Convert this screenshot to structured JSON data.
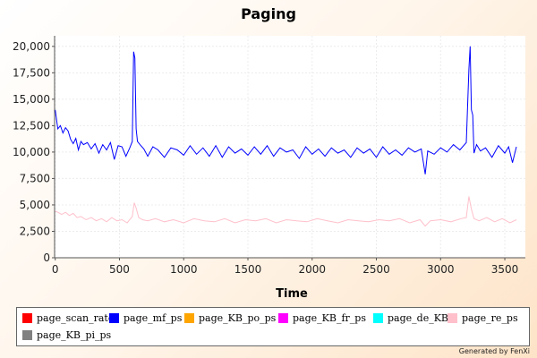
{
  "chart_data": {
    "type": "line",
    "title": "Paging",
    "xlabel": "Time",
    "ylabel": "",
    "xlim": [
      -5,
      3660
    ],
    "ylim": [
      0,
      21000
    ],
    "x_ticks": [
      0,
      500,
      1000,
      1500,
      2000,
      2500,
      3000,
      3500
    ],
    "y_ticks": [
      0,
      2500,
      5000,
      7500,
      10000,
      12500,
      15000,
      17500,
      20000
    ],
    "x_tick_labels": [
      "0",
      "500",
      "1000",
      "1500",
      "2000",
      "2500",
      "3000",
      "3500"
    ],
    "y_tick_labels": [
      "0",
      "2,500",
      "5,000",
      "7,500",
      "10,000",
      "12,500",
      "15,000",
      "17,500",
      "20,000"
    ],
    "grid": true,
    "legend_position": "bottom",
    "series": [
      {
        "name": "page_scan_rate",
        "color": "#ff0000",
        "x": [
          0,
          3600
        ],
        "y": [
          0,
          0
        ]
      },
      {
        "name": "page_mf_ps",
        "color": "#0000ff",
        "x": [
          0,
          20,
          40,
          60,
          80,
          100,
          120,
          140,
          160,
          180,
          200,
          220,
          250,
          280,
          310,
          340,
          370,
          400,
          430,
          460,
          490,
          520,
          550,
          580,
          600,
          610,
          620,
          630,
          640,
          660,
          690,
          720,
          760,
          800,
          850,
          900,
          950,
          1000,
          1050,
          1100,
          1150,
          1200,
          1250,
          1300,
          1350,
          1400,
          1450,
          1500,
          1550,
          1600,
          1650,
          1700,
          1750,
          1800,
          1850,
          1900,
          1950,
          2000,
          2050,
          2100,
          2150,
          2200,
          2250,
          2300,
          2350,
          2400,
          2450,
          2500,
          2550,
          2600,
          2650,
          2700,
          2750,
          2800,
          2850,
          2880,
          2900,
          2950,
          3000,
          3050,
          3100,
          3150,
          3200,
          3220,
          3230,
          3240,
          3250,
          3260,
          3280,
          3310,
          3350,
          3400,
          3450,
          3500,
          3530,
          3560,
          3590
        ],
        "y": [
          14000,
          12200,
          12500,
          11800,
          12300,
          12000,
          11200,
          10800,
          11300,
          10200,
          11000,
          10700,
          10900,
          10300,
          10800,
          9900,
          10700,
          10200,
          10900,
          9300,
          10600,
          10500,
          9600,
          10400,
          11000,
          19500,
          18900,
          12200,
          11000,
          10700,
          10300,
          9600,
          10500,
          10200,
          9500,
          10400,
          10200,
          9700,
          10600,
          9800,
          10400,
          9600,
          10600,
          9500,
          10500,
          9900,
          10300,
          9700,
          10500,
          9800,
          10600,
          9600,
          10400,
          10000,
          10200,
          9400,
          10500,
          9800,
          10300,
          9600,
          10400,
          9900,
          10200,
          9500,
          10400,
          9900,
          10300,
          9500,
          10500,
          9800,
          10200,
          9700,
          10400,
          10000,
          10300,
          7900,
          10100,
          9800,
          10400,
          10000,
          10700,
          10200,
          10900,
          17800,
          20000,
          14000,
          13500,
          9900,
          10700,
          10100,
          10400,
          9500,
          10600,
          9900,
          10500,
          9000,
          10500
        ]
      },
      {
        "name": "page_KB_po_ps",
        "color": "#ffa500",
        "x": [
          0,
          3600
        ],
        "y": [
          0,
          0
        ]
      },
      {
        "name": "page_KB_fr_ps",
        "color": "#ff00ff",
        "x": [
          0,
          3600
        ],
        "y": [
          0,
          0
        ]
      },
      {
        "name": "page_de_KB",
        "color": "#00ffff",
        "x": [
          0,
          3600
        ],
        "y": [
          0,
          0
        ]
      },
      {
        "name": "page_re_ps",
        "color": "#ffc0cb",
        "x": [
          0,
          20,
          50,
          80,
          110,
          140,
          170,
          200,
          240,
          280,
          320,
          360,
          400,
          440,
          480,
          520,
          560,
          600,
          615,
          630,
          650,
          680,
          720,
          780,
          850,
          920,
          1000,
          1080,
          1160,
          1240,
          1320,
          1400,
          1480,
          1560,
          1640,
          1720,
          1800,
          1880,
          1960,
          2040,
          2120,
          2200,
          2280,
          2360,
          2440,
          2520,
          2600,
          2680,
          2760,
          2840,
          2880,
          2920,
          3000,
          3080,
          3160,
          3200,
          3220,
          3240,
          3260,
          3300,
          3360,
          3420,
          3480,
          3540,
          3590
        ],
        "y": [
          4400,
          4300,
          4100,
          4300,
          4000,
          4200,
          3800,
          3900,
          3600,
          3800,
          3500,
          3700,
          3400,
          3800,
          3500,
          3600,
          3300,
          3900,
          5200,
          4700,
          3800,
          3600,
          3500,
          3700,
          3400,
          3600,
          3300,
          3700,
          3500,
          3400,
          3700,
          3300,
          3600,
          3500,
          3700,
          3300,
          3600,
          3500,
          3400,
          3700,
          3500,
          3300,
          3600,
          3500,
          3400,
          3600,
          3500,
          3700,
          3300,
          3600,
          3000,
          3500,
          3600,
          3400,
          3700,
          3800,
          5800,
          4600,
          3700,
          3500,
          3800,
          3400,
          3700,
          3300,
          3600
        ]
      },
      {
        "name": "page_KB_pi_ps",
        "color": "#808080",
        "x": [
          0,
          3600
        ],
        "y": [
          0,
          0
        ]
      }
    ]
  },
  "footer": {
    "credit": "Generated by FenXi"
  }
}
